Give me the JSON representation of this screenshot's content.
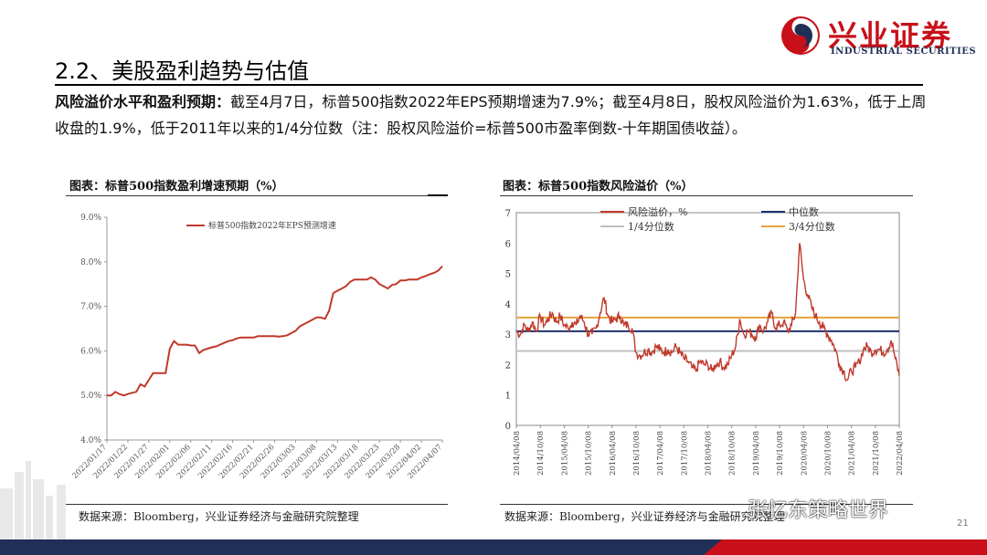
{
  "header": {
    "logo_text": "兴业证券",
    "logo_subtext": "INDUSTRIAL SECURITIES",
    "brand_red": "#c8101a",
    "brand_navy": "#1f2f55"
  },
  "slide": {
    "title": "2.2、美股盈利趋势与估值",
    "summary_lead": "风险溢价水平和盈利预期：",
    "summary_body": "截至4月7日，标普500指数2022年EPS预期增速为7.9%；截至4月8日，股权风险溢价为1.63%，低于上周收盘的1.9%，低于2011年以来的1/4分位数（注：股权风险溢价=标普500市盈率倒数-十年期国债收益）。",
    "page_number": "21",
    "watermark": "张忆东策略世界"
  },
  "panels": [
    {
      "title": "图表：标普500指数盈利增速预期（%）",
      "source": "数据来源：Bloomberg，兴业证券经济与金融研究院整理"
    },
    {
      "title": "图表：标普500指数风险溢价（%）",
      "source": "数据来源：Bloomberg，兴业证券经济与金融研究院整理"
    }
  ],
  "chart_data": [
    {
      "type": "line",
      "title": "图表：标普500指数盈利增速预期（%）",
      "ylim": [
        4.0,
        9.0
      ],
      "yticks": [
        "4.0%",
        "5.0%",
        "6.0%",
        "7.0%",
        "8.0%",
        "9.0%"
      ],
      "xticks": [
        "2022/01/17",
        "2022/01/22",
        "2022/01/27",
        "2022/02/01",
        "2022/02/06",
        "2022/02/11",
        "2022/02/16",
        "2022/02/21",
        "2022/02/26",
        "2022/03/03",
        "2022/03/08",
        "2022/03/13",
        "2022/03/18",
        "2022/03/23",
        "2022/03/28",
        "2022/04/02",
        "2022/04/07"
      ],
      "legend_position": "top-center",
      "series": [
        {
          "name": "标普500指数2022年EPS预测增速",
          "color": "#c0392b",
          "x": [
            "2022/01/17",
            "2022/01/18",
            "2022/01/19",
            "2022/01/20",
            "2022/01/21",
            "2022/01/22",
            "2022/01/23",
            "2022/01/24",
            "2022/01/25",
            "2022/01/26",
            "2022/01/27",
            "2022/01/28",
            "2022/01/29",
            "2022/01/30",
            "2022/01/31",
            "2022/02/01",
            "2022/02/02",
            "2022/02/03",
            "2022/02/04",
            "2022/02/05",
            "2022/02/06",
            "2022/02/07",
            "2022/02/08",
            "2022/02/09",
            "2022/02/10",
            "2022/02/11",
            "2022/02/12",
            "2022/02/13",
            "2022/02/14",
            "2022/02/15",
            "2022/02/16",
            "2022/02/17",
            "2022/02/18",
            "2022/02/19",
            "2022/02/20",
            "2022/02/21",
            "2022/02/22",
            "2022/02/23",
            "2022/02/24",
            "2022/02/25",
            "2022/02/26",
            "2022/02/27",
            "2022/02/28",
            "2022/03/01",
            "2022/03/02",
            "2022/03/03",
            "2022/03/04",
            "2022/03/05",
            "2022/03/06",
            "2022/03/07",
            "2022/03/08",
            "2022/03/09",
            "2022/03/10",
            "2022/03/11",
            "2022/03/12",
            "2022/03/13",
            "2022/03/14",
            "2022/03/15",
            "2022/03/16",
            "2022/03/17",
            "2022/03/18",
            "2022/03/19",
            "2022/03/20",
            "2022/03/21",
            "2022/03/22",
            "2022/03/23",
            "2022/03/24",
            "2022/03/25",
            "2022/03/26",
            "2022/03/27",
            "2022/03/28",
            "2022/03/29",
            "2022/03/30",
            "2022/03/31",
            "2022/04/01",
            "2022/04/02",
            "2022/04/03",
            "2022/04/04",
            "2022/04/05",
            "2022/04/06",
            "2022/04/07"
          ],
          "values": [
            5.0,
            5.0,
            5.08,
            5.03,
            5.0,
            5.03,
            5.06,
            5.08,
            5.25,
            5.2,
            5.35,
            5.5,
            5.5,
            5.5,
            5.5,
            6.05,
            6.22,
            6.14,
            6.14,
            6.14,
            6.12,
            6.12,
            5.95,
            6.02,
            6.05,
            6.08,
            6.1,
            6.14,
            6.18,
            6.22,
            6.24,
            6.28,
            6.3,
            6.3,
            6.3,
            6.3,
            6.33,
            6.33,
            6.33,
            6.33,
            6.33,
            6.32,
            6.33,
            6.35,
            6.4,
            6.45,
            6.55,
            6.6,
            6.65,
            6.7,
            6.75,
            6.75,
            6.72,
            6.9,
            7.3,
            7.35,
            7.4,
            7.45,
            7.55,
            7.6,
            7.6,
            7.6,
            7.6,
            7.65,
            7.6,
            7.5,
            7.45,
            7.4,
            7.48,
            7.5,
            7.58,
            7.58,
            7.6,
            7.6,
            7.6,
            7.65,
            7.68,
            7.72,
            7.75,
            7.8,
            7.9
          ]
        }
      ]
    },
    {
      "type": "line",
      "title": "图表：标普500指数风险溢价（%）",
      "ylim": [
        0,
        7
      ],
      "yticks": [
        "0",
        "1",
        "2",
        "3",
        "4",
        "5",
        "6",
        "7"
      ],
      "xticks": [
        "2014/04/08",
        "2014/10/08",
        "2015/04/08",
        "2015/10/08",
        "2016/04/08",
        "2016/10/08",
        "2017/04/08",
        "2017/10/08",
        "2018/04/08",
        "2018/10/08",
        "2019/04/08",
        "2019/10/08",
        "2020/04/08",
        "2020/10/08",
        "2021/04/08",
        "2021/10/08",
        "2022/04/08"
      ],
      "legend_position": "top",
      "series": [
        {
          "name": "风险溢价，%",
          "color": "#c0392b",
          "x": [
            "2014/04",
            "2014/05",
            "2014/06",
            "2014/07",
            "2014/08",
            "2014/09",
            "2014/10",
            "2014/11",
            "2014/12",
            "2015/01",
            "2015/02",
            "2015/03",
            "2015/04",
            "2015/05",
            "2015/06",
            "2015/07",
            "2015/08",
            "2015/09",
            "2015/10",
            "2015/11",
            "2015/12",
            "2016/01",
            "2016/02",
            "2016/03",
            "2016/04",
            "2016/05",
            "2016/06",
            "2016/07",
            "2016/08",
            "2016/09",
            "2016/10",
            "2016/11",
            "2016/12",
            "2017/01",
            "2017/02",
            "2017/03",
            "2017/04",
            "2017/05",
            "2017/06",
            "2017/07",
            "2017/08",
            "2017/09",
            "2017/10",
            "2017/11",
            "2017/12",
            "2018/01",
            "2018/02",
            "2018/03",
            "2018/04",
            "2018/05",
            "2018/06",
            "2018/07",
            "2018/08",
            "2018/09",
            "2018/10",
            "2018/11",
            "2018/12",
            "2019/01",
            "2019/02",
            "2019/03",
            "2019/04",
            "2019/05",
            "2019/06",
            "2019/07",
            "2019/08",
            "2019/09",
            "2019/10",
            "2019/11",
            "2019/12",
            "2020/01",
            "2020/02",
            "2020/03",
            "2020/04",
            "2020/05",
            "2020/06",
            "2020/07",
            "2020/08",
            "2020/09",
            "2020/10",
            "2020/11",
            "2020/12",
            "2021/01",
            "2021/02",
            "2021/03",
            "2021/04",
            "2021/05",
            "2021/06",
            "2021/07",
            "2021/08",
            "2021/09",
            "2021/10",
            "2021/11",
            "2021/12",
            "2022/01",
            "2022/02",
            "2022/03",
            "2022/04"
          ],
          "values": [
            3.1,
            3.0,
            3.3,
            3.1,
            3.4,
            3.1,
            3.6,
            3.3,
            3.5,
            3.7,
            3.4,
            3.6,
            3.3,
            3.2,
            3.4,
            3.3,
            3.6,
            3.4,
            3.0,
            3.0,
            3.2,
            3.7,
            4.2,
            3.6,
            3.4,
            3.5,
            3.6,
            3.3,
            3.3,
            3.2,
            2.4,
            2.3,
            2.4,
            2.5,
            2.4,
            2.6,
            2.5,
            2.4,
            2.5,
            2.4,
            2.6,
            2.4,
            2.2,
            2.1,
            1.9,
            1.8,
            2.1,
            2.0,
            2.0,
            1.8,
            2.0,
            2.1,
            1.9,
            2.0,
            2.3,
            2.6,
            3.5,
            3.0,
            3.1,
            3.0,
            2.9,
            3.3,
            3.1,
            3.4,
            3.7,
            3.2,
            3.3,
            3.4,
            3.1,
            3.3,
            3.7,
            6.0,
            4.8,
            4.3,
            3.9,
            3.6,
            3.4,
            3.2,
            3.0,
            2.8,
            2.5,
            2.0,
            1.8,
            1.5,
            1.8,
            1.9,
            2.1,
            2.5,
            2.6,
            2.4,
            2.5,
            2.5,
            2.4,
            2.5,
            2.8,
            2.2,
            1.63
          ]
        },
        {
          "name": "中位数",
          "color": "#1f2f6e",
          "values": [
            3.1
          ]
        },
        {
          "name": "1/4分位数",
          "color": "#bfbfbf",
          "values": [
            2.45
          ]
        },
        {
          "name": "3/4分位数",
          "color": "#e6a23c",
          "values": [
            3.55
          ]
        }
      ]
    }
  ]
}
